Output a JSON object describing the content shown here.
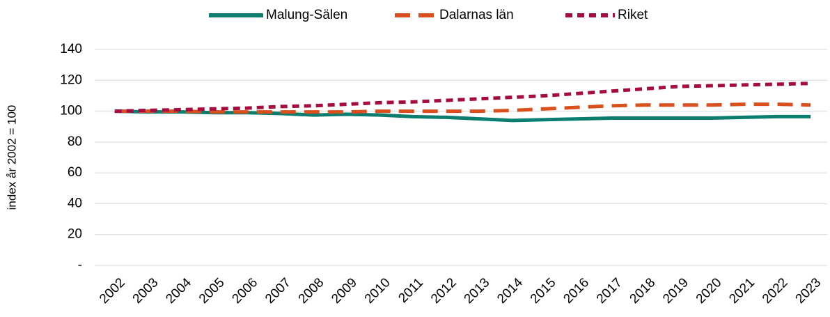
{
  "chart_data": {
    "type": "line",
    "y_label": "index år 2002 = 100",
    "categories": [
      "2002",
      "2003",
      "2004",
      "2005",
      "2006",
      "2007",
      "2008",
      "2009",
      "2010",
      "2011",
      "2012",
      "2013",
      "2014",
      "2015",
      "2016",
      "2017",
      "2018",
      "2019",
      "2020",
      "2021",
      "2022",
      "2023"
    ],
    "series": [
      {
        "name": "Malung-Sälen",
        "color": "#0a7d6e",
        "dash": "solid",
        "values": [
          100,
          99.5,
          99.5,
          99,
          99,
          98.5,
          97.5,
          98,
          97.5,
          96.5,
          96,
          95,
          94,
          94.5,
          95,
          95.5,
          95.5,
          95.5,
          95.5,
          96,
          96.5,
          96.5
        ]
      },
      {
        "name": "Dalarnas län",
        "color": "#d9501e",
        "dash": "long",
        "values": [
          100,
          100,
          100,
          99.5,
          99.5,
          99.5,
          99.5,
          99.5,
          100,
          100,
          100,
          100,
          100.5,
          101.5,
          102.5,
          103.5,
          104,
          104,
          104,
          104.5,
          104.5,
          104
        ]
      },
      {
        "name": "Riket",
        "color": "#a30d40",
        "dash": "short",
        "values": [
          100,
          100.5,
          101,
          101.5,
          102,
          103,
          103.5,
          104.5,
          105.5,
          106,
          107,
          108,
          109,
          110,
          111.5,
          113,
          114.5,
          116,
          116.5,
          117,
          117.5,
          118
        ]
      }
    ],
    "ylim": [
      0,
      140
    ],
    "yticks": [
      {
        "value": 0,
        "label": "-"
      },
      20,
      40,
      60,
      80,
      100,
      120,
      140
    ],
    "grid": true,
    "legend": "top"
  }
}
